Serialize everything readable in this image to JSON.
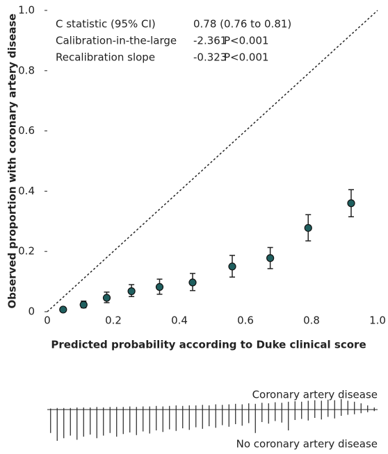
{
  "chart_data": [
    {
      "type": "scatter",
      "xlabel": "Predicted probability according to Duke clinical score",
      "ylabel": "Observed proportion with coronary artery disease",
      "x": [
        0.048,
        0.11,
        0.18,
        0.255,
        0.34,
        0.44,
        0.56,
        0.675,
        0.79,
        0.92
      ],
      "series": [
        {
          "color": "#1f5f5f",
          "values": [
            0.007,
            0.023,
            0.046,
            0.068,
            0.082,
            0.097,
            0.15,
            0.178,
            0.278,
            0.36
          ],
          "lower": [
            0.004,
            0.013,
            0.03,
            0.05,
            0.058,
            0.07,
            0.115,
            0.143,
            0.235,
            0.315
          ],
          "upper": [
            0.011,
            0.035,
            0.065,
            0.09,
            0.108,
            0.127,
            0.187,
            0.213,
            0.322,
            0.405
          ]
        }
      ],
      "xlim": [
        0,
        1
      ],
      "ylim": [
        0,
        1
      ],
      "xticks": [
        0,
        0.2,
        0.4,
        0.6,
        0.8,
        {
          "value": 1,
          "label": "1.0"
        }
      ],
      "yticks": [
        0,
        0.2,
        0.4,
        0.6,
        0.8,
        {
          "value": 1,
          "label": "1.0"
        }
      ],
      "diagonal": true,
      "annotations": [
        [
          "C statistic (95% CI)",
          "0.78 (0.76 to 0.81)"
        ],
        [
          "Calibration-in-the-large",
          "-2.361",
          "P<0.001"
        ],
        [
          "Recalibration slope",
          "-0.323",
          "P<0.001"
        ]
      ]
    },
    {
      "type": "spike",
      "x": [
        0.01,
        0.03,
        0.05,
        0.07,
        0.09,
        0.11,
        0.13,
        0.15,
        0.17,
        0.19,
        0.21,
        0.23,
        0.25,
        0.27,
        0.29,
        0.31,
        0.33,
        0.35,
        0.37,
        0.39,
        0.41,
        0.43,
        0.45,
        0.47,
        0.49,
        0.51,
        0.53,
        0.55,
        0.57,
        0.59,
        0.61,
        0.63,
        0.65,
        0.67,
        0.69,
        0.71,
        0.73,
        0.75,
        0.77,
        0.79,
        0.81,
        0.83,
        0.85,
        0.87,
        0.89,
        0.91,
        0.93,
        0.95,
        0.97,
        0.99
      ],
      "series": [
        {
          "name": "Coronary artery disease",
          "color": "#222222",
          "values": [
            2,
            3,
            3,
            3,
            4,
            4,
            4,
            5,
            4,
            5,
            5,
            5,
            6,
            5,
            6,
            6,
            7,
            6,
            7,
            8,
            7,
            8,
            8,
            9,
            8,
            10,
            9,
            10,
            11,
            10,
            12,
            11,
            13,
            12,
            14,
            13,
            15,
            16,
            15,
            17,
            18,
            17,
            19,
            18,
            20,
            17,
            15,
            12,
            8,
            4
          ]
        },
        {
          "name": "No coronary artery disease",
          "color": "#222222",
          "values": [
            45,
            60,
            55,
            50,
            58,
            52,
            48,
            55,
            50,
            45,
            52,
            47,
            44,
            49,
            42,
            46,
            40,
            43,
            38,
            41,
            36,
            39,
            34,
            37,
            32,
            35,
            30,
            33,
            28,
            31,
            26,
            45,
            24,
            27,
            22,
            25,
            40,
            20,
            18,
            21,
            16,
            19,
            14,
            17,
            12,
            10,
            9,
            7,
            5,
            3
          ]
        }
      ],
      "xlim": [
        0,
        1
      ]
    }
  ]
}
